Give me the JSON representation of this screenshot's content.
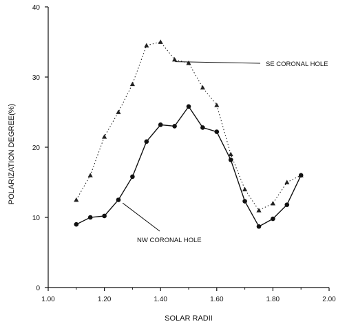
{
  "chart_data": {
    "type": "line",
    "title": "",
    "xlabel": "SOLAR RADII",
    "ylabel": "POLARIZATION DEGREE(%)",
    "xlim": [
      1.0,
      2.0
    ],
    "ylim": [
      0,
      40
    ],
    "x_ticks": [
      "1.00",
      "1.20",
      "1.40",
      "1.60",
      "1.80",
      "2.00"
    ],
    "y_ticks": [
      "0",
      "10",
      "20",
      "30",
      "40"
    ],
    "grid": false,
    "series": [
      {
        "name": "SE CORONAL HOLE",
        "line_style": "dotted",
        "marker": "triangle",
        "color": "#222222",
        "points": [
          [
            1.1,
            12.5
          ],
          [
            1.15,
            16.0
          ],
          [
            1.2,
            21.5
          ],
          [
            1.25,
            25.0
          ],
          [
            1.3,
            29.0
          ],
          [
            1.35,
            34.5
          ],
          [
            1.4,
            35.0
          ],
          [
            1.45,
            32.5
          ],
          [
            1.5,
            32.0
          ],
          [
            1.55,
            28.5
          ],
          [
            1.6,
            26.0
          ],
          [
            1.65,
            19.0
          ],
          [
            1.7,
            14.0
          ],
          [
            1.75,
            11.0
          ],
          [
            1.8,
            12.0
          ],
          [
            1.85,
            15.0
          ],
          [
            1.9,
            16.0
          ]
        ]
      },
      {
        "name": "NW CORONAL HOLE",
        "line_style": "solid",
        "marker": "circle",
        "color": "#111111",
        "points": [
          [
            1.1,
            9.0
          ],
          [
            1.15,
            10.0
          ],
          [
            1.2,
            10.2
          ],
          [
            1.25,
            12.5
          ],
          [
            1.3,
            15.8
          ],
          [
            1.35,
            20.8
          ],
          [
            1.4,
            23.2
          ],
          [
            1.45,
            23.0
          ],
          [
            1.5,
            25.8
          ],
          [
            1.55,
            22.8
          ],
          [
            1.6,
            22.2
          ],
          [
            1.65,
            18.2
          ],
          [
            1.7,
            12.3
          ],
          [
            1.75,
            8.7
          ],
          [
            1.8,
            9.8
          ],
          [
            1.85,
            11.8
          ],
          [
            1.9,
            16.0
          ]
        ]
      }
    ],
    "annotations": [
      {
        "text": "SE CORONAL HOLE",
        "series": "SE CORONAL HOLE",
        "anchor": [
          1.55,
          32.0
        ]
      },
      {
        "text": "NW CORONAL HOLE",
        "series": "NW CORONAL HOLE",
        "anchor": [
          1.28,
          14.0
        ]
      }
    ]
  }
}
